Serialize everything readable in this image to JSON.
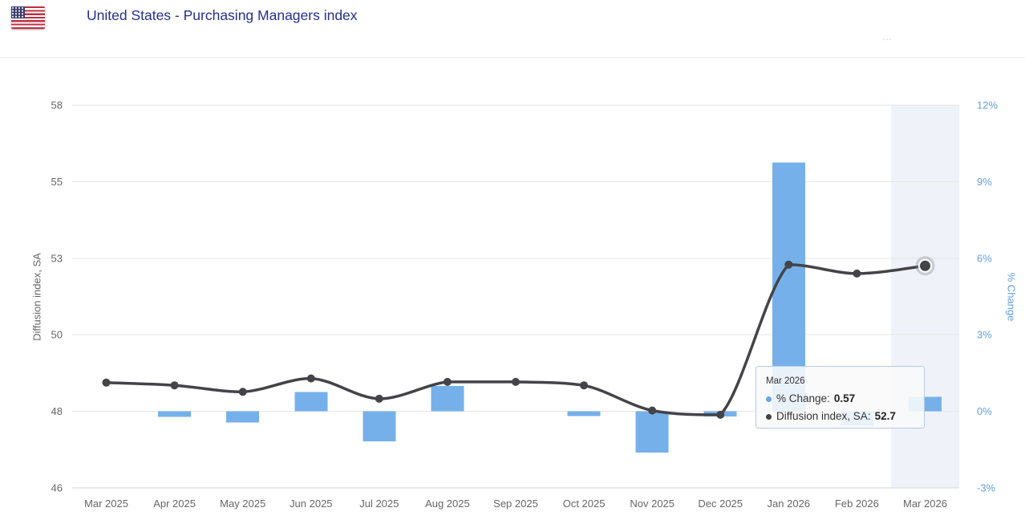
{
  "header": {
    "title": "United States - Purchasing Managers index",
    "flag": "us-flag-icon",
    "menu_glyph": "⋯"
  },
  "chart_data": {
    "type": "combo",
    "title": "United States - Purchasing Managers index",
    "categories": [
      "Mar 2025",
      "Apr 2025",
      "May 2025",
      "Jun 2025",
      "Jul 2025",
      "Aug 2025",
      "Sep 2025",
      "Oct 2025",
      "Nov 2025",
      "Dec 2025",
      "Jan 2026",
      "Feb 2026",
      "Mar 2026"
    ],
    "series": [
      {
        "name": "% Change",
        "type": "bar",
        "axis": "right",
        "color": "#76b0ea",
        "values": [
          0,
          -0.22,
          -0.43,
          0.76,
          -1.18,
          1.0,
          0,
          -0.18,
          -1.62,
          -0.2,
          9.75,
          -0.57,
          0.57
        ]
      },
      {
        "name": "Diffusion index, SA",
        "type": "spline",
        "axis": "left",
        "color": "#434348",
        "values": [
          48.75,
          48.68,
          48.51,
          48.86,
          48.33,
          48.77,
          48.77,
          48.68,
          48.02,
          47.91,
          52.75,
          52.4,
          52.7
        ]
      }
    ],
    "left_axis": {
      "title": "Diffusion index, SA",
      "ticks": [
        58,
        55,
        53,
        50,
        48,
        46
      ],
      "label_color": "#666666"
    },
    "right_axis": {
      "title": "% Change",
      "tick_labels": [
        "12%",
        "9%",
        "6%",
        "3%",
        "0%",
        "-3%"
      ],
      "tick_values": [
        12,
        9,
        6,
        3,
        0,
        -3
      ],
      "label_color": "#64a0e4"
    },
    "grid": true,
    "legend_position": "none",
    "highlighted_category": "Mar 2026",
    "highlight_band_color": "#eff3f9",
    "tooltip": {
      "title": "Mar 2026",
      "rows": [
        {
          "label": "% Change",
          "value": "0.57",
          "color": "#6aa4e8"
        },
        {
          "label": "Diffusion index, SA",
          "value": "52.7",
          "color": "#434348"
        }
      ]
    }
  }
}
